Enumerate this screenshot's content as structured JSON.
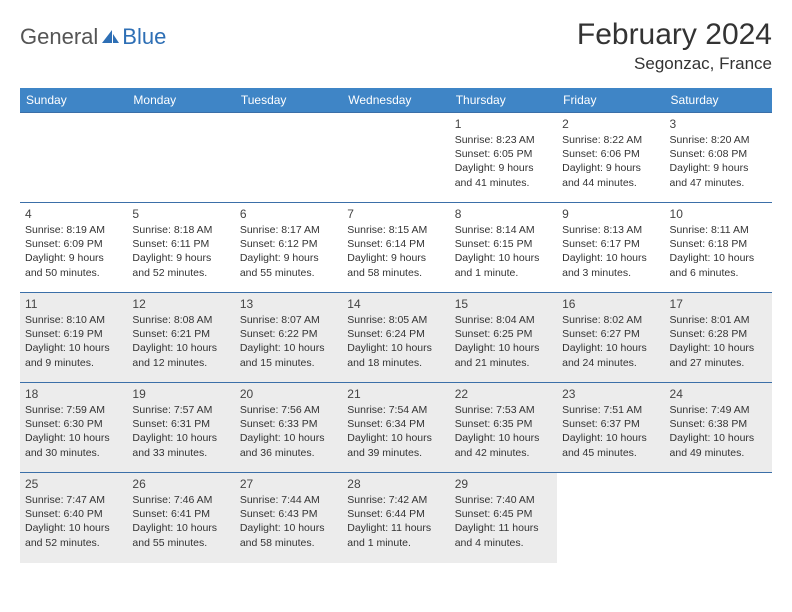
{
  "logo": {
    "word1": "General",
    "word2": "Blue"
  },
  "title": "February 2024",
  "location": "Segonzac, France",
  "header_bg": "#3f85c6",
  "header_fg": "#ffffff",
  "row_border": "#3b6fa8",
  "shade_bg": "#ececec",
  "columns": [
    "Sunday",
    "Monday",
    "Tuesday",
    "Wednesday",
    "Thursday",
    "Friday",
    "Saturday"
  ],
  "weeks": [
    {
      "shade": false,
      "days": [
        null,
        null,
        null,
        null,
        {
          "n": "1",
          "sr": "8:23 AM",
          "ss": "6:05 PM",
          "dl": "9 hours and 41 minutes."
        },
        {
          "n": "2",
          "sr": "8:22 AM",
          "ss": "6:06 PM",
          "dl": "9 hours and 44 minutes."
        },
        {
          "n": "3",
          "sr": "8:20 AM",
          "ss": "6:08 PM",
          "dl": "9 hours and 47 minutes."
        }
      ]
    },
    {
      "shade": false,
      "days": [
        {
          "n": "4",
          "sr": "8:19 AM",
          "ss": "6:09 PM",
          "dl": "9 hours and 50 minutes."
        },
        {
          "n": "5",
          "sr": "8:18 AM",
          "ss": "6:11 PM",
          "dl": "9 hours and 52 minutes."
        },
        {
          "n": "6",
          "sr": "8:17 AM",
          "ss": "6:12 PM",
          "dl": "9 hours and 55 minutes."
        },
        {
          "n": "7",
          "sr": "8:15 AM",
          "ss": "6:14 PM",
          "dl": "9 hours and 58 minutes."
        },
        {
          "n": "8",
          "sr": "8:14 AM",
          "ss": "6:15 PM",
          "dl": "10 hours and 1 minute."
        },
        {
          "n": "9",
          "sr": "8:13 AM",
          "ss": "6:17 PM",
          "dl": "10 hours and 3 minutes."
        },
        {
          "n": "10",
          "sr": "8:11 AM",
          "ss": "6:18 PM",
          "dl": "10 hours and 6 minutes."
        }
      ]
    },
    {
      "shade": true,
      "days": [
        {
          "n": "11",
          "sr": "8:10 AM",
          "ss": "6:19 PM",
          "dl": "10 hours and 9 minutes."
        },
        {
          "n": "12",
          "sr": "8:08 AM",
          "ss": "6:21 PM",
          "dl": "10 hours and 12 minutes."
        },
        {
          "n": "13",
          "sr": "8:07 AM",
          "ss": "6:22 PM",
          "dl": "10 hours and 15 minutes."
        },
        {
          "n": "14",
          "sr": "8:05 AM",
          "ss": "6:24 PM",
          "dl": "10 hours and 18 minutes."
        },
        {
          "n": "15",
          "sr": "8:04 AM",
          "ss": "6:25 PM",
          "dl": "10 hours and 21 minutes."
        },
        {
          "n": "16",
          "sr": "8:02 AM",
          "ss": "6:27 PM",
          "dl": "10 hours and 24 minutes."
        },
        {
          "n": "17",
          "sr": "8:01 AM",
          "ss": "6:28 PM",
          "dl": "10 hours and 27 minutes."
        }
      ]
    },
    {
      "shade": true,
      "days": [
        {
          "n": "18",
          "sr": "7:59 AM",
          "ss": "6:30 PM",
          "dl": "10 hours and 30 minutes."
        },
        {
          "n": "19",
          "sr": "7:57 AM",
          "ss": "6:31 PM",
          "dl": "10 hours and 33 minutes."
        },
        {
          "n": "20",
          "sr": "7:56 AM",
          "ss": "6:33 PM",
          "dl": "10 hours and 36 minutes."
        },
        {
          "n": "21",
          "sr": "7:54 AM",
          "ss": "6:34 PM",
          "dl": "10 hours and 39 minutes."
        },
        {
          "n": "22",
          "sr": "7:53 AM",
          "ss": "6:35 PM",
          "dl": "10 hours and 42 minutes."
        },
        {
          "n": "23",
          "sr": "7:51 AM",
          "ss": "6:37 PM",
          "dl": "10 hours and 45 minutes."
        },
        {
          "n": "24",
          "sr": "7:49 AM",
          "ss": "6:38 PM",
          "dl": "10 hours and 49 minutes."
        }
      ]
    },
    {
      "shade": true,
      "days": [
        {
          "n": "25",
          "sr": "7:47 AM",
          "ss": "6:40 PM",
          "dl": "10 hours and 52 minutes."
        },
        {
          "n": "26",
          "sr": "7:46 AM",
          "ss": "6:41 PM",
          "dl": "10 hours and 55 minutes."
        },
        {
          "n": "27",
          "sr": "7:44 AM",
          "ss": "6:43 PM",
          "dl": "10 hours and 58 minutes."
        },
        {
          "n": "28",
          "sr": "7:42 AM",
          "ss": "6:44 PM",
          "dl": "11 hours and 1 minute."
        },
        {
          "n": "29",
          "sr": "7:40 AM",
          "ss": "6:45 PM",
          "dl": "11 hours and 4 minutes."
        },
        null,
        null
      ]
    }
  ],
  "labels": {
    "sunrise": "Sunrise: ",
    "sunset": "Sunset: ",
    "daylight": "Daylight: "
  }
}
